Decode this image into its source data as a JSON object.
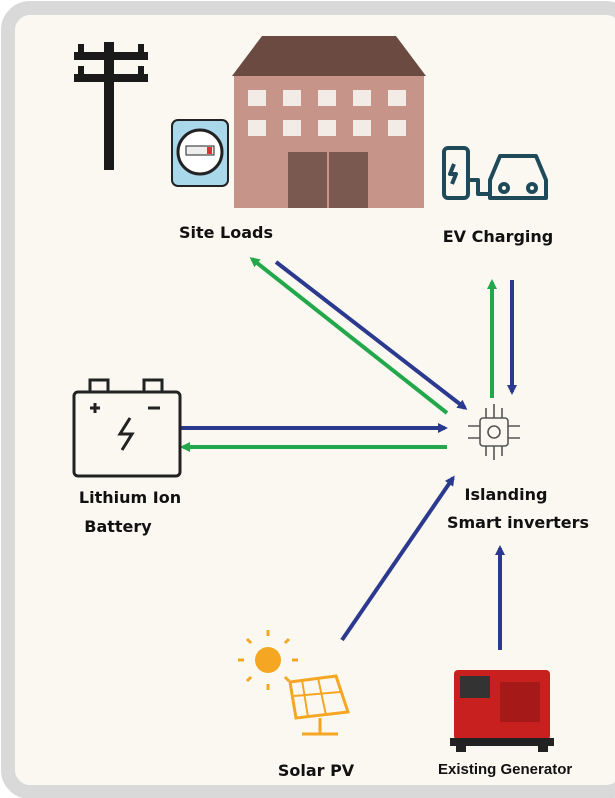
{
  "nodes": [
    {
      "label_lines": [
        "Site Loads"
      ]
    },
    {
      "label_lines": [
        "EV Charging"
      ]
    },
    {
      "label_lines": [
        "Lithium Ion",
        "Battery"
      ]
    },
    {
      "label_lines": [
        "Islanding",
        "Smart inverters"
      ]
    },
    {
      "label_lines": [
        "Solar PV"
      ]
    },
    {
      "label_lines": [
        "Existing Generator"
      ]
    }
  ]
}
